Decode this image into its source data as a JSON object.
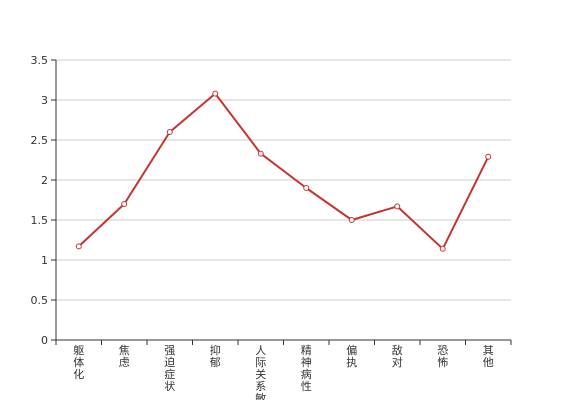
{
  "chart_data": {
    "type": "line",
    "categories": [
      "躯体化",
      "焦虑",
      "强迫症状",
      "抑郁",
      "人际关系敏感",
      "精神病性",
      "偏执",
      "敌对",
      "恐怖",
      "其他"
    ],
    "series": [
      {
        "values": [
          1.17,
          1.7,
          2.6,
          3.08,
          2.33,
          1.9,
          1.5,
          1.67,
          1.14,
          2.29
        ]
      }
    ],
    "title": "",
    "xlabel": "",
    "ylabel": "",
    "ylim": [
      0,
      3.5
    ],
    "yticks": [
      "0",
      "0.5",
      "1",
      "1.5",
      "2",
      "2.5",
      "3",
      "3.5"
    ],
    "grid": true,
    "legend": "none",
    "line_color": "#c23531"
  }
}
